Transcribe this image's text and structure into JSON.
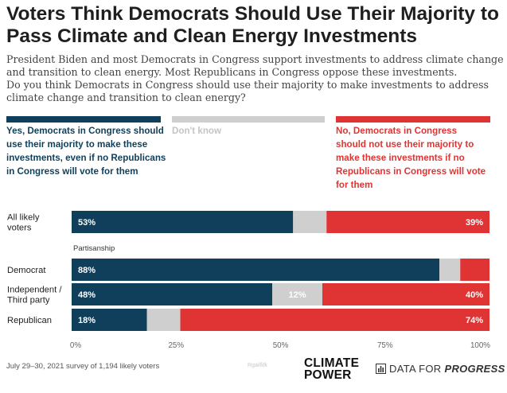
{
  "header": {
    "title": "Voters Think Democrats Should Use Their Majority to Pass Climate and Clean Energy Investments",
    "subtitle_line1": "President Biden and most Democrats in Congress support investments to address climate change and transition to clean energy. Most Republicans in Congress oppose these investments.",
    "subtitle_line2": "Do you think Democrats in Congress should use their majority to make investments to address climate change and transition to clean energy?"
  },
  "colors": {
    "yes": "#0f3f5a",
    "dont_know": "#cfcfcf",
    "no": "#e03434"
  },
  "legend": {
    "yes": "Yes, Democrats in Congress should use their majority to make these investments, even if no Republicans in Congress will vote for them",
    "dont_know": "Don't know",
    "no": "No, Democrats in Congress should not use their majority to make these investments if no Republicans in Congress will vote for them"
  },
  "chart_data": {
    "type": "bar",
    "orientation": "horizontal",
    "stacked": true,
    "xlim": [
      0,
      100
    ],
    "x_ticks": [
      "0%",
      "25%",
      "50%",
      "75%",
      "100%"
    ],
    "group_label": "Partisanship",
    "categories": [
      "All likely voters",
      "Democrat",
      "Independent / Third party",
      "Republican"
    ],
    "series": [
      {
        "name": "Yes, Democrats in Congress should use their majority to make these investments, even if no Republicans in Congress will vote for them",
        "values": [
          53,
          88,
          48,
          18
        ],
        "labels": [
          "53%",
          "88%",
          "48%",
          "18%"
        ]
      },
      {
        "name": "Don't know",
        "values": [
          8,
          5,
          12,
          8
        ],
        "labels": [
          "",
          "",
          "12%",
          ""
        ]
      },
      {
        "name": "No, Democrats in Congress should not use their majority to make these investments if no Republicans in Congress will vote for them",
        "values": [
          39,
          7,
          40,
          74
        ],
        "labels": [
          "39%",
          "",
          "40%",
          "74%"
        ]
      }
    ]
  },
  "footer": {
    "note": "July 29–30, 2021 survey of 1,194 likely voters",
    "watermark": "Rgailfifk",
    "logo_climate_power_line1": "CLIMATE",
    "logo_climate_power_line2": "POWER",
    "logo_dfp_plain": "DATA FOR",
    "logo_dfp_bold": "PROGRESS"
  }
}
